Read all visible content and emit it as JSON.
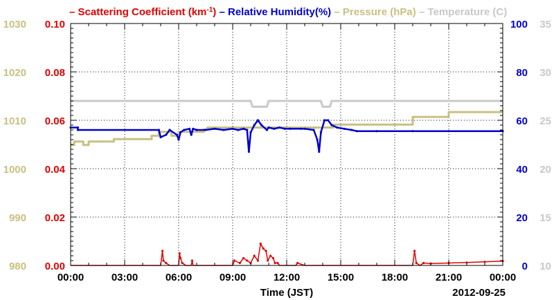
{
  "chart_data": {
    "type": "line",
    "legend": [
      {
        "key": "scat",
        "label": "Scattering Coefficient (km",
        "sup": "-1",
        "tail": ")",
        "color": "#e00000"
      },
      {
        "key": "rh",
        "label": "Relative Humidity(%)",
        "color": "#0000cc"
      },
      {
        "key": "pres",
        "label": "Pressure (hPa)",
        "color": "#c8c080"
      },
      {
        "key": "temp",
        "label": "Temperature (C)",
        "color": "#c8c8c8"
      }
    ],
    "xlabel": "Time (JST)",
    "date_label": "2012-09-25",
    "x_ticks": [
      "00:00",
      "03:00",
      "06:00",
      "09:00",
      "12:00",
      "15:00",
      "18:00",
      "21:00",
      "00:00"
    ],
    "xlim_hours": [
      0,
      24
    ],
    "axes": {
      "pressure": {
        "range": [
          980,
          1030
        ],
        "ticks": [
          "980",
          "990",
          "1000",
          "1010",
          "1020",
          "1030"
        ],
        "color": "#c8c080"
      },
      "scattering": {
        "range": [
          0,
          0.1
        ],
        "ticks": [
          "0.00",
          "0.02",
          "0.04",
          "0.06",
          "0.08",
          "0.10"
        ],
        "color": "#e00000"
      },
      "humidity": {
        "range": [
          0,
          100
        ],
        "ticks": [
          "0",
          "20",
          "40",
          "60",
          "80",
          "100"
        ],
        "color": "#0000cc"
      },
      "temperature": {
        "range": [
          10,
          35
        ],
        "ticks": [
          "10",
          "15",
          "20",
          "25",
          "30",
          "35"
        ],
        "color": "#c8c8c8"
      }
    },
    "grid": true,
    "series": [
      {
        "key": "temp",
        "axis": "temperature",
        "color": "#c8c8c8",
        "points": [
          [
            0,
            27.0
          ],
          [
            10.0,
            27.0
          ],
          [
            10.1,
            26.4
          ],
          [
            10.9,
            26.4
          ],
          [
            11.0,
            27.0
          ],
          [
            13.9,
            27.0
          ],
          [
            14.0,
            26.4
          ],
          [
            14.4,
            26.4
          ],
          [
            14.5,
            27.0
          ],
          [
            24,
            27.0
          ]
        ]
      },
      {
        "key": "pres",
        "axis": "pressure",
        "color": "#c8c080",
        "points": [
          [
            0,
            1004.9
          ],
          [
            0.2,
            1004.9
          ],
          [
            0.2,
            1005.6
          ],
          [
            0.7,
            1005.6
          ],
          [
            0.7,
            1004.9
          ],
          [
            1.0,
            1004.9
          ],
          [
            1.0,
            1005.6
          ],
          [
            2.4,
            1005.6
          ],
          [
            2.4,
            1006.1
          ],
          [
            4.5,
            1006.1
          ],
          [
            4.5,
            1006.8
          ],
          [
            4.9,
            1006.8
          ],
          [
            4.9,
            1007.6
          ],
          [
            5.6,
            1007.6
          ],
          [
            5.6,
            1006.8
          ],
          [
            6.0,
            1006.8
          ],
          [
            6.0,
            1007.6
          ],
          [
            7.4,
            1007.6
          ],
          [
            7.4,
            1008.1
          ],
          [
            7.6,
            1008.1
          ],
          [
            7.6,
            1008.5
          ],
          [
            14.6,
            1008.5
          ],
          [
            14.6,
            1009.1
          ],
          [
            19.0,
            1009.1
          ],
          [
            19.0,
            1010.7
          ],
          [
            21.0,
            1010.7
          ],
          [
            21.0,
            1011.7
          ],
          [
            24,
            1011.7
          ]
        ]
      },
      {
        "key": "rh",
        "axis": "humidity",
        "color": "#0000cc",
        "points": [
          [
            0,
            57.0
          ],
          [
            0.4,
            57.0
          ],
          [
            0.4,
            56.0
          ],
          [
            4.9,
            56.0
          ],
          [
            5.0,
            53.0
          ],
          [
            5.3,
            54.0
          ],
          [
            5.5,
            56.0
          ],
          [
            5.9,
            54.0
          ],
          [
            6.0,
            52.0
          ],
          [
            6.1,
            55.0
          ],
          [
            6.3,
            56.0
          ],
          [
            6.6,
            56.5
          ],
          [
            6.7,
            54.0
          ],
          [
            6.8,
            56.5
          ],
          [
            7.0,
            56.0
          ],
          [
            7.5,
            56.0
          ],
          [
            8.0,
            56.5
          ],
          [
            8.5,
            56.0
          ],
          [
            9.0,
            56.5
          ],
          [
            9.3,
            56.0
          ],
          [
            9.6,
            56.5
          ],
          [
            9.8,
            56.0
          ],
          [
            9.9,
            47.0
          ],
          [
            10.0,
            55.0
          ],
          [
            10.2,
            58.0
          ],
          [
            10.4,
            60.0
          ],
          [
            10.6,
            58.0
          ],
          [
            10.9,
            56.0
          ],
          [
            11.0,
            57.0
          ],
          [
            11.3,
            56.5
          ],
          [
            11.6,
            57.0
          ],
          [
            11.9,
            56.5
          ],
          [
            12.2,
            56.5
          ],
          [
            12.8,
            56.5
          ],
          [
            13.0,
            56.5
          ],
          [
            13.5,
            56.0
          ],
          [
            13.7,
            52.0
          ],
          [
            13.8,
            47.0
          ],
          [
            13.9,
            55.0
          ],
          [
            14.1,
            60.0
          ],
          [
            14.3,
            60.0
          ],
          [
            14.5,
            58.0
          ],
          [
            14.8,
            57.0
          ],
          [
            15.2,
            56.5
          ],
          [
            15.6,
            56.0
          ],
          [
            15.9,
            55.5
          ],
          [
            17.0,
            55.5
          ],
          [
            19.0,
            55.5
          ],
          [
            21.0,
            55.5
          ],
          [
            24,
            55.5
          ]
        ]
      },
      {
        "key": "scat",
        "axis": "scattering",
        "color": "#e00000",
        "points": [
          [
            0,
            0.0
          ],
          [
            5.0,
            0.0
          ],
          [
            5.1,
            0.006
          ],
          [
            5.15,
            0.002
          ],
          [
            5.3,
            0.001
          ],
          [
            5.5,
            0.0
          ],
          [
            6.0,
            0.0
          ],
          [
            6.05,
            0.005
          ],
          [
            6.1,
            0.003
          ],
          [
            6.2,
            0.001
          ],
          [
            6.4,
            0.0
          ],
          [
            6.7,
            0.0
          ],
          [
            6.75,
            0.002
          ],
          [
            6.8,
            0.0
          ],
          [
            9.0,
            0.0
          ],
          [
            9.1,
            0.002
          ],
          [
            9.4,
            0.001
          ],
          [
            9.6,
            0.003
          ],
          [
            9.8,
            0.002
          ],
          [
            10.0,
            0.001
          ],
          [
            10.2,
            0.004
          ],
          [
            10.4,
            0.002
          ],
          [
            10.55,
            0.009
          ],
          [
            10.7,
            0.007
          ],
          [
            10.85,
            0.006
          ],
          [
            10.95,
            0.002
          ],
          [
            11.1,
            0.004
          ],
          [
            11.25,
            0.003
          ],
          [
            11.35,
            0.001
          ],
          [
            11.5,
            0.001
          ],
          [
            11.6,
            0.0
          ],
          [
            12.5,
            0.0
          ],
          [
            12.6,
            0.001
          ],
          [
            13.0,
            0.0
          ],
          [
            19.0,
            0.0
          ],
          [
            19.1,
            0.006
          ],
          [
            19.2,
            0.001
          ],
          [
            19.4,
            0.0
          ],
          [
            19.6,
            0.001
          ],
          [
            20.0,
            0.0008
          ],
          [
            21.0,
            0.001
          ],
          [
            22.0,
            0.0012
          ],
          [
            23.0,
            0.0015
          ],
          [
            24,
            0.0018
          ]
        ]
      }
    ]
  }
}
